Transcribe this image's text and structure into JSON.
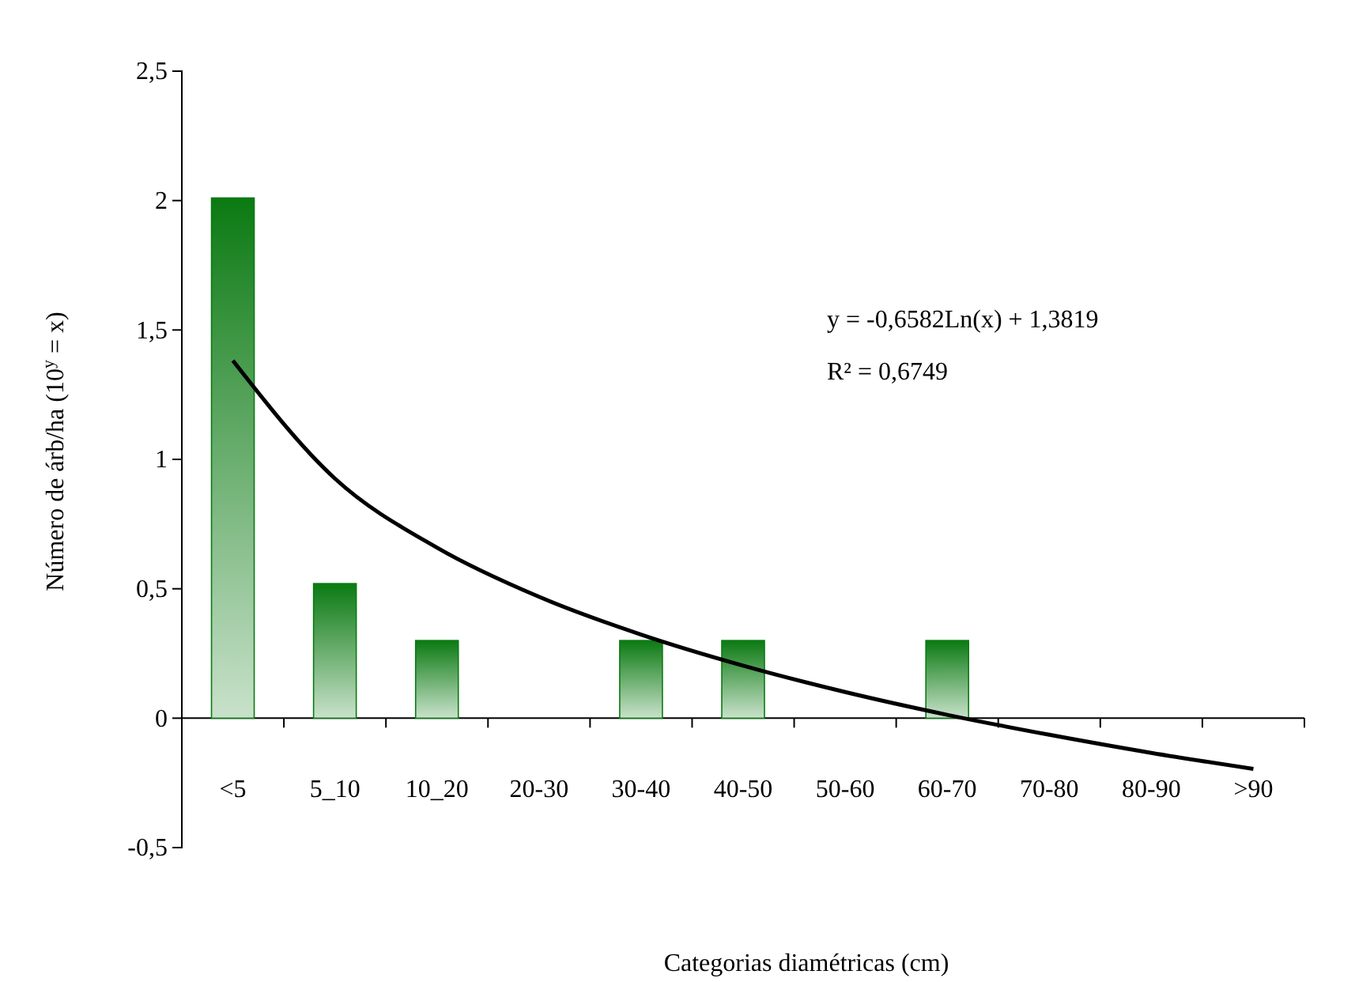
{
  "chart_data": {
    "type": "bar",
    "xlabel": "Categorias diamétricas (cm)",
    "ylabel": "Número de árb/ha (10$^{y}$ = x)",
    "categories": [
      "<5",
      "5_10",
      "10_20",
      "20-30",
      "30-40",
      "40-50",
      "50-60",
      "60-70",
      "70-80",
      "80-90",
      ">90"
    ],
    "ylim": [
      -0.5,
      2.5
    ],
    "yticks": [
      {
        "value": -0.5,
        "label": "-0,5"
      },
      {
        "value": 0,
        "label": "0"
      },
      {
        "value": 0.5,
        "label": "0,5"
      },
      {
        "value": 1,
        "label": "1"
      },
      {
        "value": 1.5,
        "label": "1,5"
      },
      {
        "value": 2,
        "label": "2"
      },
      {
        "value": 2.5,
        "label": "2,5"
      }
    ],
    "grid": false,
    "series": [
      {
        "color": "#0b7a12",
        "values": [
          2.01,
          0.52,
          0.3,
          null,
          0.3,
          0.3,
          null,
          0.3,
          null,
          null,
          null
        ]
      },
      {
        "type": "line",
        "color": "#000000",
        "x": [
          "<5",
          "5_10",
          "10_20",
          "20-30",
          "30-40",
          "40-50",
          "50-60",
          "60-70",
          "70-80",
          "80-90",
          ">90"
        ],
        "values": [
          1.382,
          0.926,
          0.659,
          0.469,
          0.323,
          0.203,
          0.101,
          0.013,
          -0.064,
          -0.134,
          -0.196
        ]
      }
    ],
    "annotations": [
      "y = -0,6582Ln(x) + 1,3819",
      "R² = 0,6749"
    ]
  }
}
